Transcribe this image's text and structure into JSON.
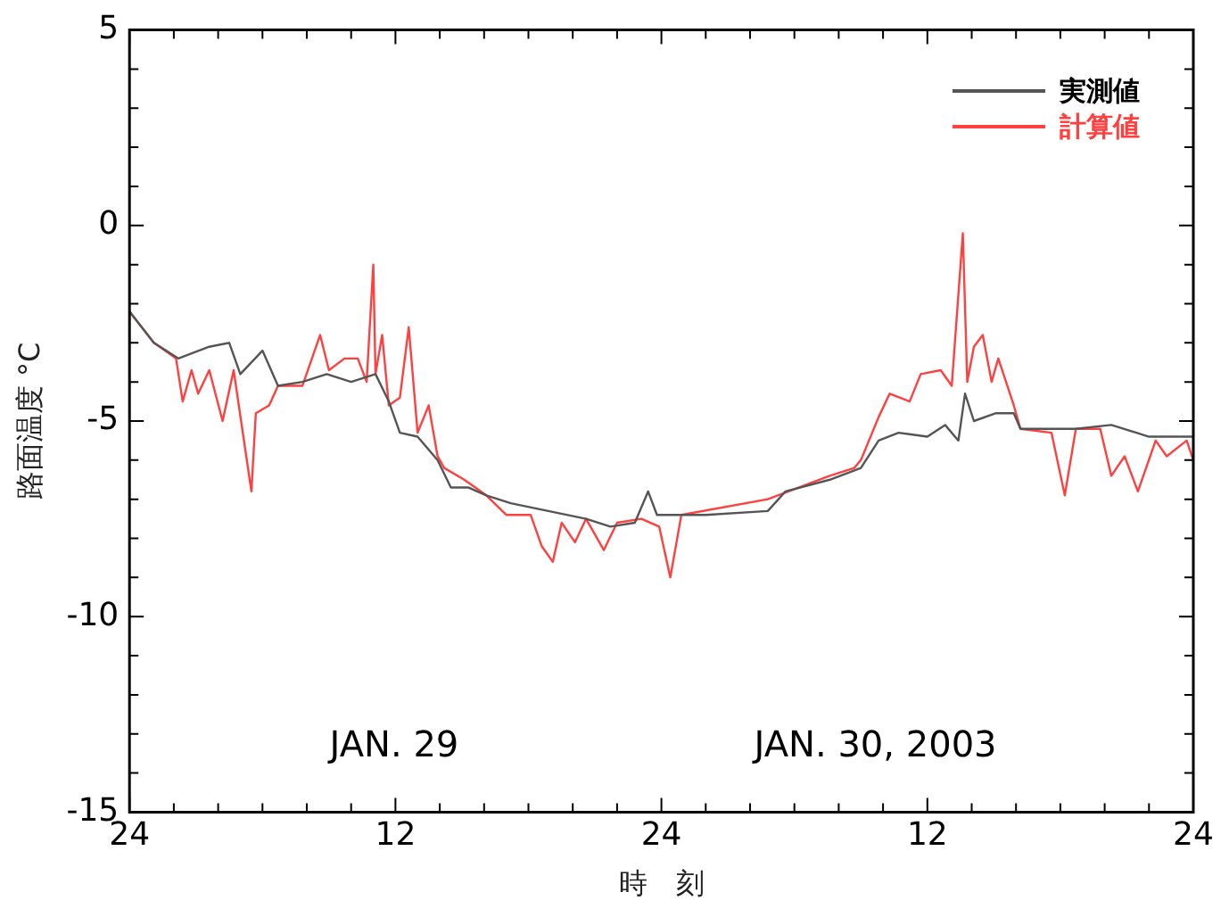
{
  "chart_data": {
    "type": "line",
    "xlabel": "時　刻",
    "ylabel": "路面温度 °C",
    "xlim": [
      "2003-01-29T00:00",
      "2003-01-31T00:00"
    ],
    "ylim": [
      -15,
      5
    ],
    "xticks": [
      {
        "value": "2003-01-29T00:00",
        "label": "24"
      },
      {
        "value": "2003-01-29T02:00",
        "label": null
      },
      {
        "value": "2003-01-29T04:00",
        "label": null
      },
      {
        "value": "2003-01-29T06:00",
        "label": null
      },
      {
        "value": "2003-01-29T08:00",
        "label": null
      },
      {
        "value": "2003-01-29T10:00",
        "label": null
      },
      {
        "value": "2003-01-29T12:00",
        "label": "12"
      },
      {
        "value": "2003-01-29T14:00",
        "label": null
      },
      {
        "value": "2003-01-29T16:00",
        "label": null
      },
      {
        "value": "2003-01-29T18:00",
        "label": null
      },
      {
        "value": "2003-01-29T20:00",
        "label": null
      },
      {
        "value": "2003-01-29T22:00",
        "label": null
      },
      {
        "value": "2003-01-30T00:00",
        "label": "24"
      },
      {
        "value": "2003-01-30T02:00",
        "label": null
      },
      {
        "value": "2003-01-30T04:00",
        "label": null
      },
      {
        "value": "2003-01-30T06:00",
        "label": null
      },
      {
        "value": "2003-01-30T08:00",
        "label": null
      },
      {
        "value": "2003-01-30T10:00",
        "label": null
      },
      {
        "value": "2003-01-30T12:00",
        "label": "12"
      },
      {
        "value": "2003-01-30T14:00",
        "label": null
      },
      {
        "value": "2003-01-30T16:00",
        "label": null
      },
      {
        "value": "2003-01-30T18:00",
        "label": null
      },
      {
        "value": "2003-01-30T20:00",
        "label": null
      },
      {
        "value": "2003-01-30T22:00",
        "label": null
      },
      {
        "value": "2003-01-31T00:00",
        "label": "24"
      }
    ],
    "yticks": [
      -15,
      {
        "value": -14,
        "label": null
      },
      {
        "value": -13,
        "label": null
      },
      {
        "value": -12,
        "label": null
      },
      {
        "value": -11,
        "label": null
      },
      -10,
      {
        "value": -9,
        "label": null
      },
      {
        "value": -8,
        "label": null
      },
      {
        "value": -7,
        "label": null
      },
      {
        "value": -6,
        "label": null
      },
      -5,
      {
        "value": -4,
        "label": null
      },
      {
        "value": -3,
        "label": null
      },
      {
        "value": -2,
        "label": null
      },
      {
        "value": -1,
        "label": null
      },
      0,
      {
        "value": 1,
        "label": null
      },
      {
        "value": 2,
        "label": null
      },
      {
        "value": 3,
        "label": null
      },
      {
        "value": 4,
        "label": null
      },
      5
    ],
    "grid": false,
    "legend": "top right",
    "marker": "none",
    "line_style": "solid",
    "annotations": [
      "JAN. 29",
      "JAN. 30, 2003"
    ],
    "series": [
      {
        "name": "実測値",
        "color": "#555555",
        "x": [
          "2003-01-29T00:00",
          "2003-01-29T01:06",
          "2003-01-29T02:12",
          "2003-01-29T03:36",
          "2003-01-29T04:30",
          "2003-01-29T05:00",
          "2003-01-29T06:00",
          "2003-01-29T06:42",
          "2003-01-29T07:48",
          "2003-01-29T08:54",
          "2003-01-29T10:00",
          "2003-01-29T11:06",
          "2003-01-29T11:42",
          "2003-01-29T12:12",
          "2003-01-29T13:00",
          "2003-01-29T13:54",
          "2003-01-29T14:30",
          "2003-01-29T15:18",
          "2003-01-29T16:06",
          "2003-01-29T17:12",
          "2003-01-29T18:54",
          "2003-01-29T20:36",
          "2003-01-29T21:42",
          "2003-01-29T22:48",
          "2003-01-29T23:24",
          "2003-01-29T23:48",
          "2003-01-30T02:00",
          "2003-01-30T04:48",
          "2003-01-30T05:36",
          "2003-01-30T07:36",
          "2003-01-30T09:00",
          "2003-01-30T09:48",
          "2003-01-30T10:42",
          "2003-01-30T12:00",
          "2003-01-30T12:48",
          "2003-01-30T13:24",
          "2003-01-30T13:42",
          "2003-01-30T14:06",
          "2003-01-30T15:06",
          "2003-01-30T15:54",
          "2003-01-30T16:12",
          "2003-01-30T18:42",
          "2003-01-30T20:18",
          "2003-01-30T22:00",
          "2003-01-31T00:00"
        ],
        "values": [
          -2.2,
          -3.0,
          -3.4,
          -3.1,
          -3.0,
          -3.8,
          -3.2,
          -4.1,
          -4.0,
          -3.8,
          -4.0,
          -3.8,
          -4.5,
          -5.3,
          -5.4,
          -6.0,
          -6.7,
          -6.7,
          -6.9,
          -7.1,
          -7.3,
          -7.5,
          -7.7,
          -7.6,
          -6.8,
          -7.4,
          -7.4,
          -7.3,
          -6.8,
          -6.5,
          -6.2,
          -5.5,
          -5.3,
          -5.4,
          -5.1,
          -5.5,
          -4.3,
          -5.0,
          -4.8,
          -4.8,
          -5.2,
          -5.2,
          -5.1,
          -5.4,
          -5.4
        ]
      },
      {
        "name": "計算値",
        "color": "#ff4040",
        "x": [
          "2003-01-29T00:00",
          "2003-01-29T01:06",
          "2003-01-29T02:06",
          "2003-01-29T02:24",
          "2003-01-29T02:48",
          "2003-01-29T03:06",
          "2003-01-29T03:36",
          "2003-01-29T04:12",
          "2003-01-29T04:42",
          "2003-01-29T05:30",
          "2003-01-29T05:42",
          "2003-01-29T06:18",
          "2003-01-29T06:42",
          "2003-01-29T07:48",
          "2003-01-29T08:36",
          "2003-01-29T09:00",
          "2003-01-29T09:42",
          "2003-01-29T10:18",
          "2003-01-29T10:42",
          "2003-01-29T11:00",
          "2003-01-29T11:06",
          "2003-01-29T11:24",
          "2003-01-29T11:42",
          "2003-01-29T12:12",
          "2003-01-29T12:36",
          "2003-01-29T13:00",
          "2003-01-29T13:30",
          "2003-01-29T13:54",
          "2003-01-29T14:12",
          "2003-01-29T15:06",
          "2003-01-29T16:06",
          "2003-01-29T17:00",
          "2003-01-29T18:06",
          "2003-01-29T18:36",
          "2003-01-29T19:06",
          "2003-01-29T19:30",
          "2003-01-29T20:06",
          "2003-01-29T20:36",
          "2003-01-29T21:24",
          "2003-01-29T22:00",
          "2003-01-29T23:06",
          "2003-01-29T23:54",
          "2003-01-30T00:24",
          "2003-01-30T00:54",
          "2003-01-30T04:48",
          "2003-01-30T07:36",
          "2003-01-30T08:42",
          "2003-01-30T09:00",
          "2003-01-30T09:48",
          "2003-01-30T10:18",
          "2003-01-30T11:12",
          "2003-01-30T11:42",
          "2003-01-30T12:36",
          "2003-01-30T13:06",
          "2003-01-30T13:36",
          "2003-01-30T13:48",
          "2003-01-30T14:06",
          "2003-01-30T14:30",
          "2003-01-30T14:54",
          "2003-01-30T15:12",
          "2003-01-30T15:54",
          "2003-01-30T16:12",
          "2003-01-30T17:36",
          "2003-01-30T18:12",
          "2003-01-30T18:42",
          "2003-01-30T19:48",
          "2003-01-30T20:18",
          "2003-01-30T20:54",
          "2003-01-30T21:30",
          "2003-01-30T22:18",
          "2003-01-30T22:48",
          "2003-01-30T23:42",
          "2003-01-31T00:00"
        ],
        "values": [
          -2.2,
          -3.0,
          -3.4,
          -4.5,
          -3.7,
          -4.3,
          -3.7,
          -5.0,
          -3.7,
          -6.8,
          -4.8,
          -4.6,
          -4.1,
          -4.1,
          -2.8,
          -3.7,
          -3.4,
          -3.4,
          -4.0,
          -1.0,
          -3.8,
          -2.8,
          -4.6,
          -4.4,
          -2.6,
          -5.3,
          -4.6,
          -5.9,
          -6.2,
          -6.5,
          -6.9,
          -7.4,
          -7.4,
          -8.2,
          -8.6,
          -7.6,
          -8.1,
          -7.5,
          -8.3,
          -7.6,
          -7.5,
          -7.7,
          -9.0,
          -7.4,
          -7.0,
          -6.4,
          -6.2,
          -6.0,
          -4.9,
          -4.3,
          -4.5,
          -3.8,
          -3.7,
          -4.1,
          -0.2,
          -4.0,
          -3.1,
          -2.8,
          -4.0,
          -3.4,
          -4.6,
          -5.2,
          -5.3,
          -6.9,
          -5.2,
          -5.2,
          -6.4,
          -5.9,
          -6.8,
          -5.5,
          -5.9,
          -5.5,
          -6.0
        ]
      }
    ]
  }
}
